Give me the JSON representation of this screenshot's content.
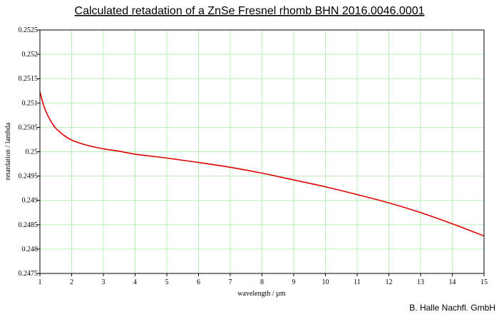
{
  "chart_data": {
    "type": "line",
    "title": "Calculated retadation of a ZnSe Fresnel rhomb BHN 2016.0046.0001",
    "xlabel": "wavelength / µm",
    "ylabel": "retardation / lambda",
    "xlim": [
      1,
      15
    ],
    "ylim": [
      0.2475,
      0.2525
    ],
    "x_ticks": [
      1,
      2,
      3,
      4,
      5,
      6,
      7,
      8,
      9,
      10,
      11,
      12,
      13,
      14,
      15
    ],
    "x_tick_labels": [
      "1",
      "2",
      "3",
      "4",
      "5",
      "6",
      "7",
      "8",
      "9",
      "10",
      "11",
      "12",
      "13",
      "14",
      "15"
    ],
    "y_ticks": [
      0.2475,
      0.248,
      0.2485,
      0.249,
      0.2495,
      0.25,
      0.2505,
      0.251,
      0.2515,
      0.252,
      0.2525
    ],
    "y_tick_labels": [
      "0.2475",
      "0.248",
      "0.2485",
      "0.249",
      "0.2495",
      "0.25",
      "0.2505",
      "0.251",
      "0.2515",
      "0.252",
      "0.2525"
    ],
    "grid": true,
    "grid_color": "#b7f0b7",
    "series": [
      {
        "color": "#e00000",
        "x": [
          1,
          1.1,
          1.2,
          1.35,
          1.5,
          1.75,
          2,
          2.5,
          3,
          3.5,
          4,
          5,
          6,
          7,
          8,
          9,
          10,
          11,
          12,
          13,
          14,
          15
        ],
        "y": [
          0.25123,
          0.25099,
          0.25081,
          0.25062,
          0.25048,
          0.25034,
          0.25024,
          0.25013,
          0.25006,
          0.25001,
          0.24995,
          0.24987,
          0.24978,
          0.24968,
          0.24956,
          0.24942,
          0.24928,
          0.24912,
          0.24895,
          0.24875,
          0.24852,
          0.24827
        ]
      }
    ]
  },
  "footer": {
    "credit": "B. Halle Nachfl. GmbH"
  }
}
